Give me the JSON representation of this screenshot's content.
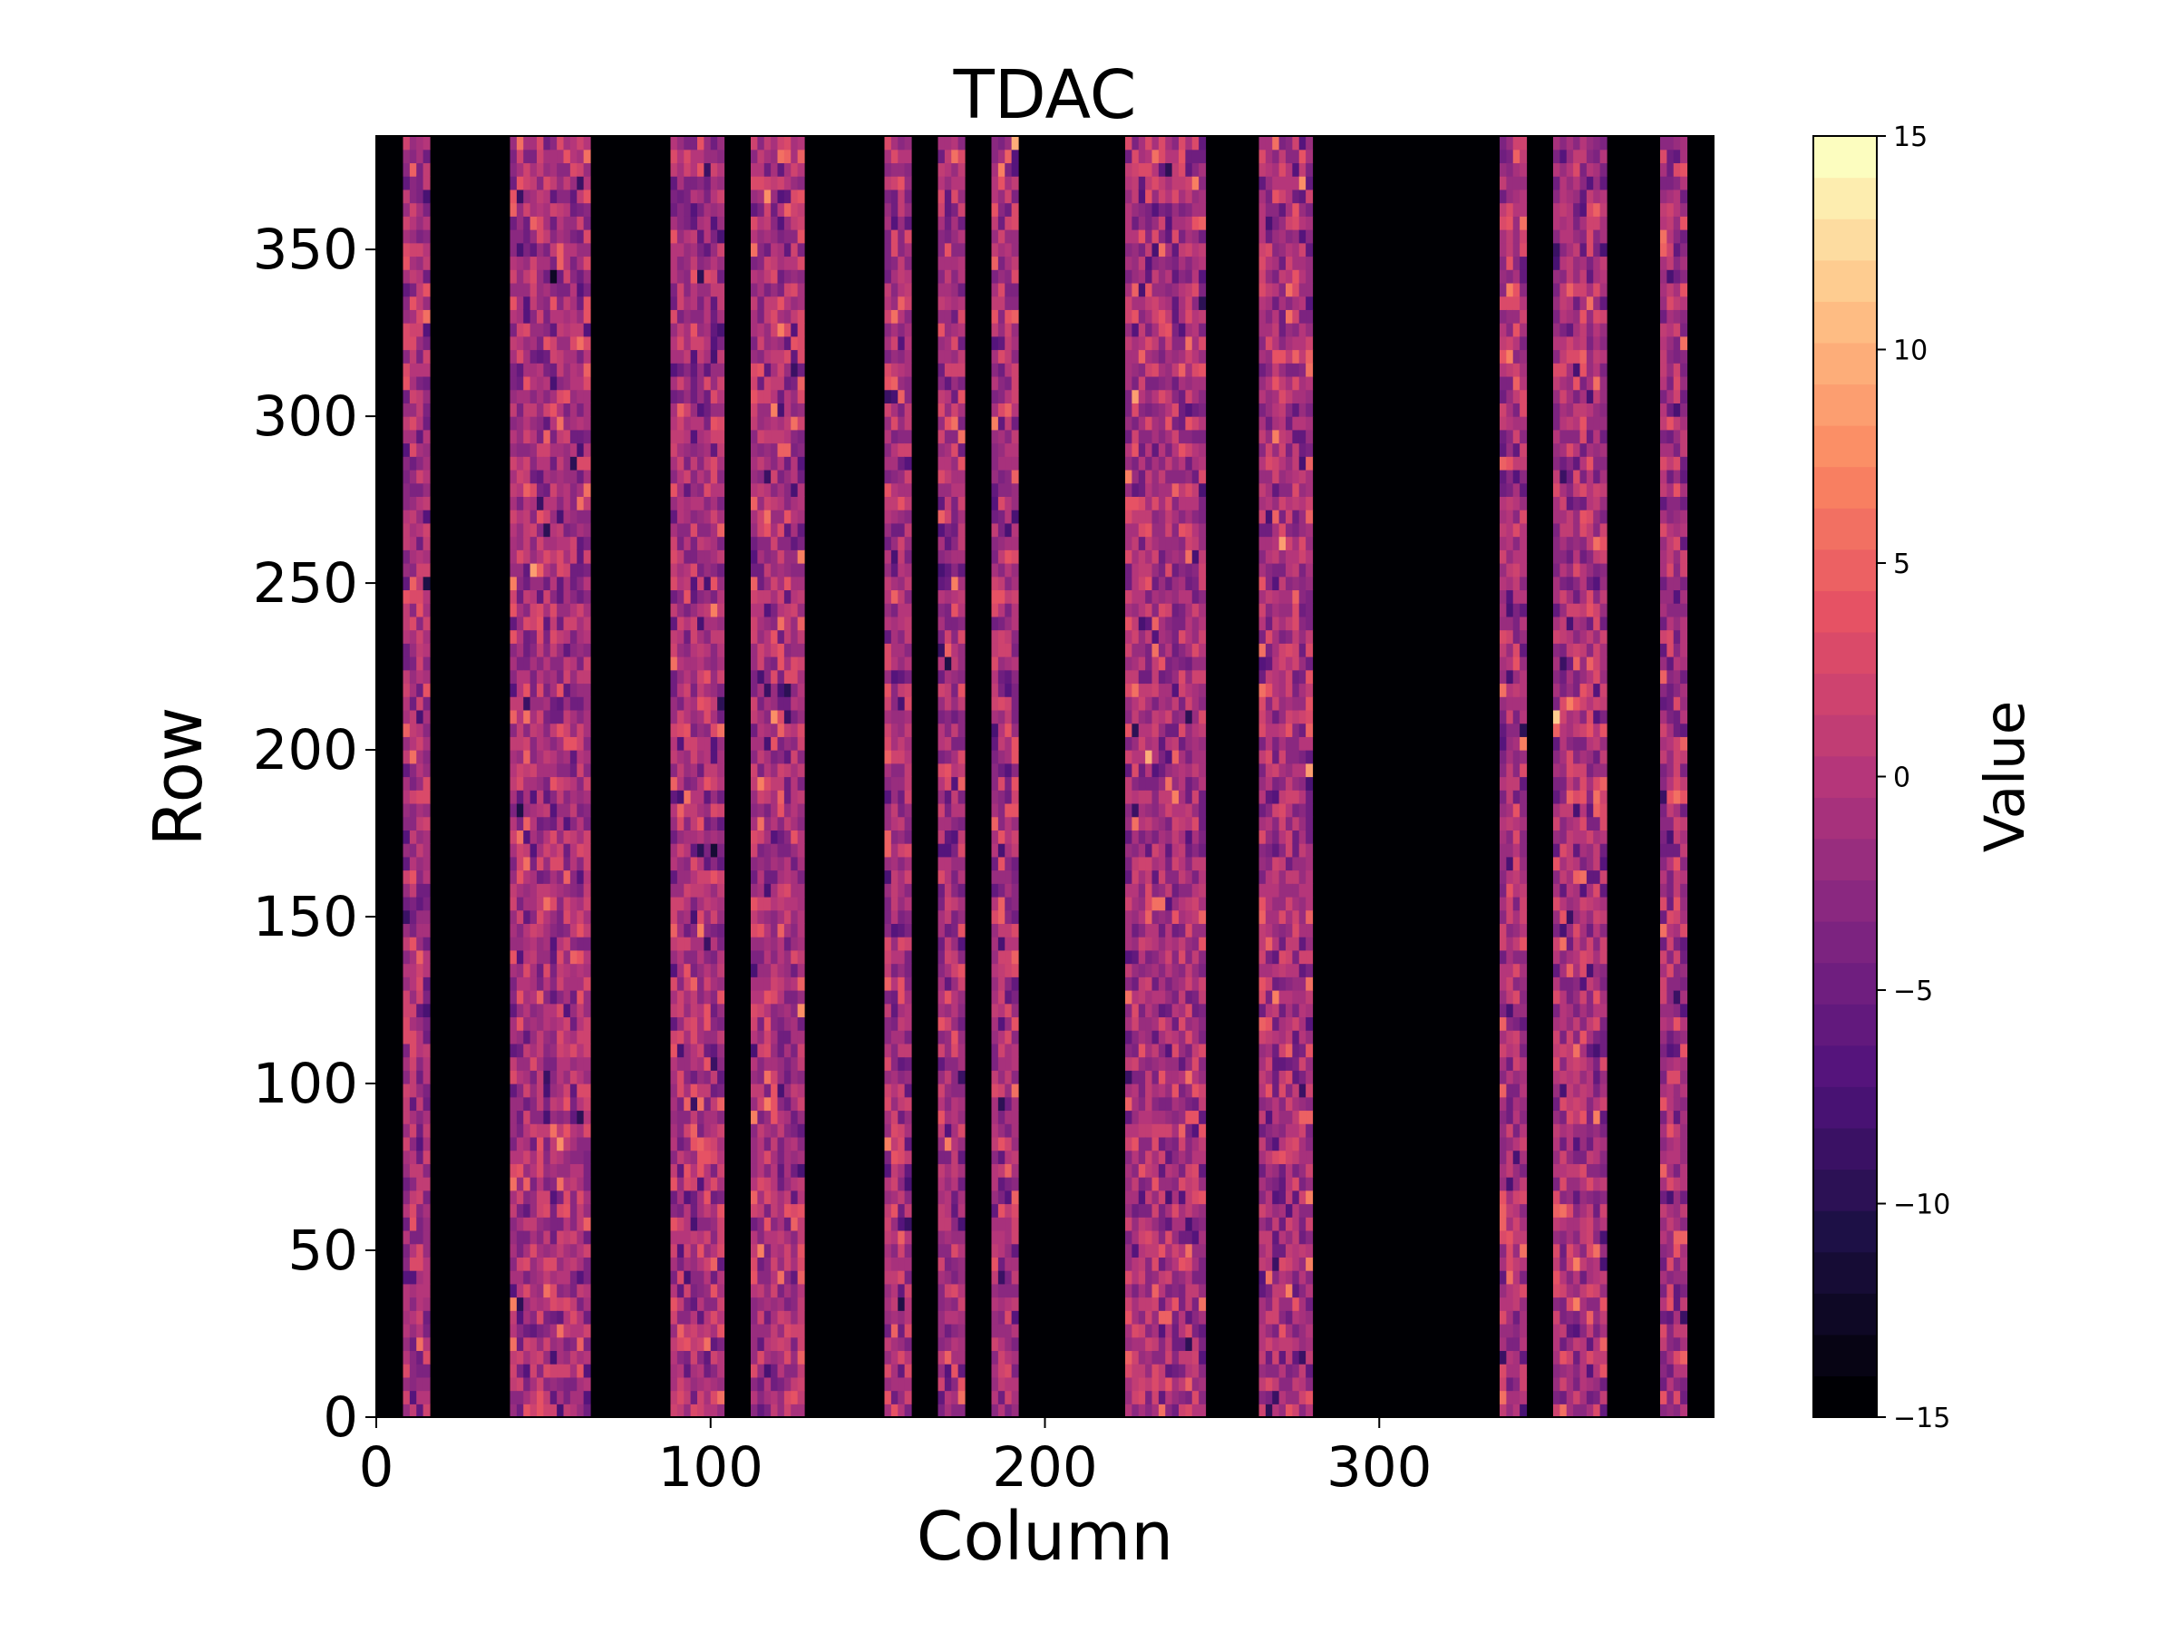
{
  "chart_data": {
    "type": "heatmap",
    "title": "TDAC",
    "xlabel": "Column",
    "ylabel": "Row",
    "xlim": [
      0,
      400
    ],
    "ylim": [
      0,
      384
    ],
    "xticks": [
      0,
      100,
      200,
      300
    ],
    "yticks": [
      0,
      50,
      100,
      150,
      200,
      250,
      300,
      350
    ],
    "colormap": "magma",
    "colorbar": {
      "label": "Value",
      "vmin": -15,
      "vmax": 15,
      "ticks": [
        -15,
        -10,
        -5,
        0,
        5,
        10,
        15
      ],
      "tick_labels": [
        "−15",
        "−10",
        "−5",
        "0",
        "5",
        "10",
        "15"
      ],
      "levels": 31
    },
    "background_value": -15,
    "active_column_ranges": [
      [
        8,
        16
      ],
      [
        40,
        64
      ],
      [
        88,
        104
      ],
      [
        112,
        128
      ],
      [
        152,
        160
      ],
      [
        168,
        176
      ],
      [
        184,
        192
      ],
      [
        224,
        248
      ],
      [
        264,
        280
      ],
      [
        336,
        344
      ],
      [
        352,
        368
      ],
      [
        384,
        392
      ]
    ],
    "active_value_distribution": {
      "mean": -1,
      "std": 3,
      "min": -15,
      "max": 15
    }
  }
}
